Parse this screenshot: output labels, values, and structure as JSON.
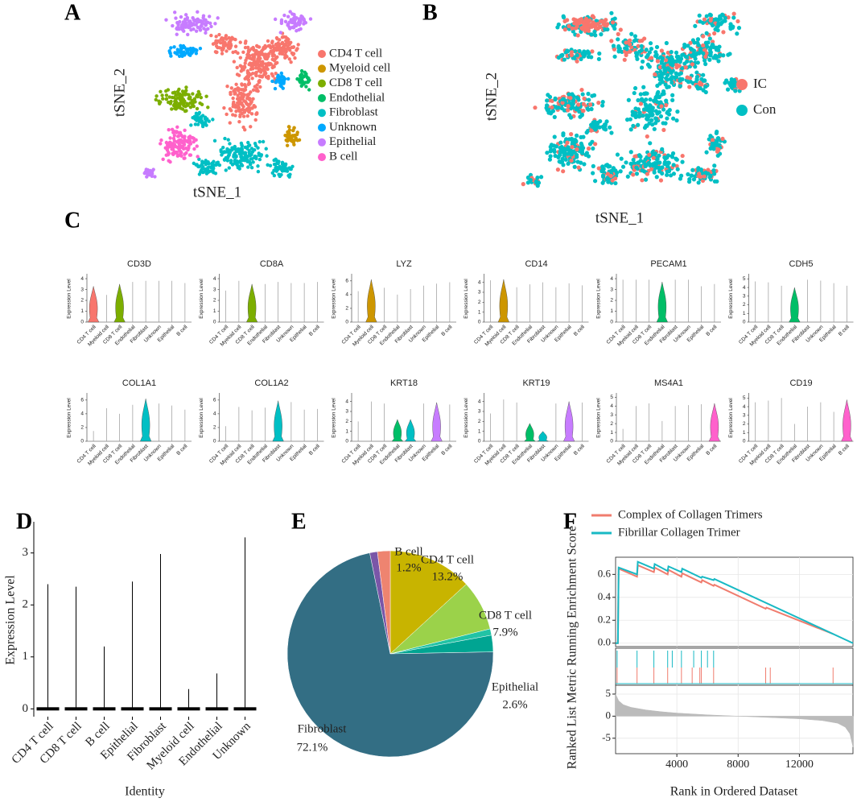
{
  "chart_data": [
    {
      "panel": "A",
      "type": "tsne",
      "xlabel": "tSNE_1",
      "ylabel": "tSNE_2",
      "series": [
        {
          "name": "CD4 T cell",
          "color": "#F8766D"
        },
        {
          "name": "Myeloid cell",
          "color": "#CD9600"
        },
        {
          "name": "CD8 T cell",
          "color": "#7CAE00"
        },
        {
          "name": "Endothelial",
          "color": "#00BE67"
        },
        {
          "name": "Fibroblast",
          "color": "#00BFC4"
        },
        {
          "name": "Unknown",
          "color": "#00A9FF"
        },
        {
          "name": "Epithelial",
          "color": "#C77CFF"
        },
        {
          "name": "B cell",
          "color": "#FF61CC"
        }
      ]
    },
    {
      "panel": "B",
      "type": "tsne",
      "xlabel": "tSNE_1",
      "ylabel": "tSNE_2",
      "series": [
        {
          "name": "IC",
          "color": "#F8766D"
        },
        {
          "name": "Con",
          "color": "#00BFC4"
        }
      ]
    },
    {
      "panel": "C",
      "type": "violin-grid",
      "ylabel": "Expression Level",
      "categories": [
        "CD4 T cell",
        "Myeloid cell",
        "CD8 T cell",
        "Endothelial",
        "Fibroblast",
        "Unknown",
        "Epithelial",
        "B cell"
      ],
      "panels": [
        {
          "title": "CD3D",
          "ylim": [
            0,
            4.3
          ],
          "yticks": [
            0,
            1,
            2,
            3,
            4
          ],
          "values": [
            3.3,
            2.5,
            3.5,
            3.7,
            3.8,
            3.8,
            3.8,
            3.6
          ],
          "highlight": [
            0,
            2
          ]
        },
        {
          "title": "CD8A",
          "ylim": [
            0,
            4.3
          ],
          "yticks": [
            0,
            1,
            2,
            3,
            4
          ],
          "values": [
            2.9,
            3.8,
            3.5,
            3.5,
            3.7,
            3.6,
            3.6,
            3.7
          ],
          "highlight": [
            2
          ]
        },
        {
          "title": "LYZ",
          "ylim": [
            0,
            6.8
          ],
          "yticks": [
            0,
            2,
            4,
            6
          ],
          "values": [
            4.5,
            6.2,
            5.0,
            4.0,
            4.8,
            5.3,
            5.6,
            5.8
          ],
          "highlight": [
            1
          ]
        },
        {
          "title": "CD14",
          "ylim": [
            0,
            4.7
          ],
          "yticks": [
            0,
            1,
            2,
            3,
            4
          ],
          "values": [
            4.2,
            4.3,
            3.5,
            3.8,
            4.0,
            3.5,
            3.9,
            3.7
          ],
          "highlight": [
            1
          ]
        },
        {
          "title": "PECAM1",
          "ylim": [
            0,
            4.3
          ],
          "yticks": [
            0,
            1,
            2,
            3,
            4
          ],
          "values": [
            3.9,
            3.9,
            3.9,
            3.7,
            3.9,
            3.9,
            3.3,
            3.5
          ],
          "highlight": [
            3
          ]
        },
        {
          "title": "CDH5",
          "ylim": [
            0,
            5.4
          ],
          "yticks": [
            0,
            1,
            2,
            3,
            4,
            5
          ],
          "values": [
            4.7,
            4.6,
            4.2,
            4.0,
            4.9,
            4.8,
            4.5,
            4.2
          ],
          "highlight": [
            3
          ]
        },
        {
          "title": "COL1A1",
          "ylim": [
            0,
            6.8
          ],
          "yticks": [
            0,
            2,
            4,
            6
          ],
          "values": [
            1.5,
            4.8,
            4.0,
            5.3,
            6.2,
            5.5,
            5.2,
            4.6
          ],
          "highlight": [
            4
          ]
        },
        {
          "title": "COL1A2",
          "ylim": [
            0,
            6.8
          ],
          "yticks": [
            0,
            2,
            4,
            6
          ],
          "values": [
            2.2,
            5.0,
            4.5,
            4.9,
            5.9,
            5.7,
            4.6,
            4.7
          ],
          "highlight": [
            4
          ]
        },
        {
          "title": "KRT18",
          "ylim": [
            0,
            4.7
          ],
          "yticks": [
            0,
            1,
            2,
            3,
            4
          ],
          "values": [
            2.0,
            4.0,
            3.8,
            2.2,
            2.2,
            3.8,
            3.9,
            3.7
          ],
          "highlight": [
            3,
            4,
            6
          ]
        },
        {
          "title": "KRT19",
          "ylim": [
            0,
            4.7
          ],
          "yticks": [
            0,
            1,
            2,
            3,
            4
          ],
          "values": [
            2.8,
            4.2,
            3.9,
            1.8,
            1.0,
            3.8,
            4.0,
            3.9
          ],
          "highlight": [
            3,
            4,
            6
          ]
        },
        {
          "title": "MS4A1",
          "ylim": [
            0,
            5.3
          ],
          "yticks": [
            0,
            1,
            2,
            3,
            4,
            5
          ],
          "values": [
            1.4,
            4.0,
            4.3,
            2.3,
            4.0,
            4.1,
            4.2,
            4.3
          ],
          "highlight": [
            7
          ]
        },
        {
          "title": "CD19",
          "ylim": [
            0,
            5.4
          ],
          "yticks": [
            0,
            1,
            2,
            3,
            4,
            5
          ],
          "values": [
            4.5,
            4.7,
            5.0,
            2.0,
            4.0,
            4.5,
            3.4,
            4.8
          ],
          "highlight": [
            7
          ]
        }
      ]
    },
    {
      "panel": "D",
      "type": "strip",
      "xlabel": "Identity",
      "ylabel": "Expression Level",
      "categories": [
        "CD4 T cell",
        "CD8 T cell",
        "B cell",
        "Epithelial",
        "Fibroblast",
        "Myeloid cell",
        "Endothelial",
        "Unknown"
      ],
      "values": [
        2.4,
        2.35,
        1.2,
        2.45,
        2.98,
        0.38,
        0.68,
        3.3
      ],
      "ylim": [
        -0.15,
        3.6
      ],
      "yticks": [
        0,
        1,
        2,
        3
      ]
    },
    {
      "panel": "E",
      "type": "pie",
      "categories": [
        "CD4 T cell",
        "CD8 T cell",
        null,
        "Epithelial",
        "Fibroblast",
        "B cell",
        null
      ],
      "values": [
        13.2,
        7.9,
        1.0,
        2.6,
        72.1,
        1.2,
        2.0
      ],
      "value_labels": [
        "13.2%",
        "7.9%",
        null,
        "2.6%",
        "72.1%",
        "1.2%",
        null
      ],
      "colors": [
        "#C8B400",
        "#9BD24A",
        "#22C3A5",
        "#00A592",
        "#336E84",
        "#7A56A8",
        "#EE8470"
      ]
    },
    {
      "panel": "F",
      "type": "gsea",
      "xlabel": "Rank in Ordered Dataset",
      "ylabel": "Running Enrichment Score",
      "y2label": "Ranked List Metric",
      "xlim": [
        0,
        15500
      ],
      "xticks": [
        4000,
        8000,
        12000
      ],
      "ylim": [
        -0.03,
        0.75
      ],
      "yticks": [
        {
          "value": 0,
          "label": "0.0"
        },
        0.2,
        0.4,
        0.6
      ],
      "grid": true,
      "series": [
        {
          "name": "Complex of Collagen Trimers",
          "color": "#F07C6E",
          "x": [
            0,
            150,
            200,
            1400,
            1450,
            2500,
            2550,
            3400,
            3450,
            4300,
            4350,
            5600,
            5650,
            6400,
            6450,
            9800,
            9850,
            14200
          ],
          "values": [
            0,
            0,
            0.65,
            0.58,
            0.68,
            0.62,
            0.66,
            0.6,
            0.64,
            0.58,
            0.61,
            0.53,
            0.55,
            0.5,
            0.51,
            0.3,
            0.31,
            0.08
          ],
          "hits": [
            100,
            1400,
            2500,
            3400,
            4300,
            5000,
            5500,
            5600,
            6400,
            9800,
            10100,
            14200
          ]
        },
        {
          "name": "Fibrillar Collagen Trimer",
          "color": "#18B9C4",
          "x": [
            0,
            150,
            200,
            1400,
            1450,
            2500,
            2550,
            3400,
            3450,
            4300,
            4350,
            5600,
            5650,
            6400,
            6450,
            15500
          ],
          "values": [
            0,
            0,
            0.66,
            0.6,
            0.71,
            0.65,
            0.69,
            0.63,
            0.67,
            0.62,
            0.65,
            0.57,
            0.58,
            0.55,
            0.56,
            0
          ],
          "hits": [
            100,
            1400,
            2500,
            3400,
            3700,
            4300,
            5100,
            5600,
            6000,
            6400
          ]
        }
      ],
      "metric": {
        "color": "#BBBBBB",
        "ylim": [
          -8.5,
          7
        ],
        "yticks": [
          -5,
          0,
          5
        ],
        "x": [
          0,
          200,
          500,
          1000,
          2000,
          3000,
          4000,
          6000,
          8000,
          10000,
          12000,
          13500,
          14500,
          15000,
          15300,
          15500
        ],
        "values": [
          5,
          3.5,
          2.6,
          2,
          1.4,
          1,
          0.7,
          0.3,
          0,
          -0.3,
          -0.6,
          -1,
          -1.6,
          -2.5,
          -4,
          -7
        ]
      }
    }
  ]
}
